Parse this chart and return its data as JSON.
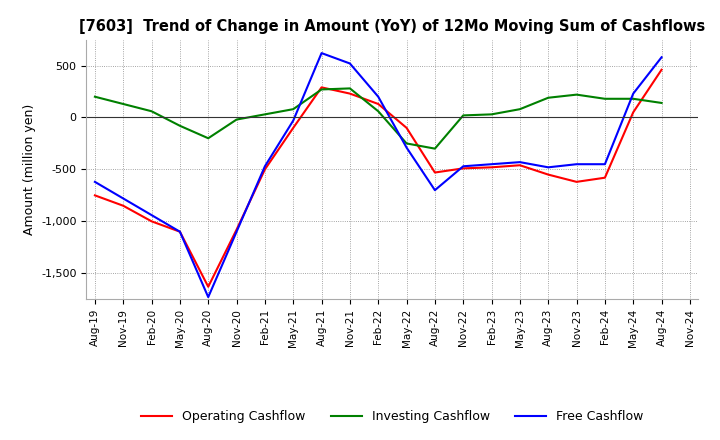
{
  "title": "[7603]  Trend of Change in Amount (YoY) of 12Mo Moving Sum of Cashflows",
  "ylabel": "Amount (million yen)",
  "ylim": [
    -1750,
    750
  ],
  "yticks": [
    -1500,
    -1000,
    -500,
    0,
    500
  ],
  "x_labels": [
    "Aug-19",
    "Nov-19",
    "Feb-20",
    "May-20",
    "Aug-20",
    "Nov-20",
    "Feb-21",
    "May-21",
    "Aug-21",
    "Nov-21",
    "Feb-22",
    "May-22",
    "Aug-22",
    "Nov-22",
    "Feb-23",
    "May-23",
    "Aug-23",
    "Nov-23",
    "Feb-24",
    "May-24",
    "Aug-24",
    "Nov-24"
  ],
  "operating": [
    -750,
    -850,
    -1000,
    -1100,
    -1630,
    -1080,
    -500,
    -100,
    290,
    230,
    130,
    -100,
    -530,
    -490,
    -480,
    -460,
    -550,
    -620,
    -580,
    50,
    460,
    null
  ],
  "investing": [
    200,
    130,
    60,
    -80,
    -200,
    -20,
    30,
    80,
    270,
    280,
    60,
    -250,
    -300,
    20,
    30,
    80,
    190,
    220,
    180,
    180,
    140,
    null
  ],
  "free": [
    -620,
    -780,
    -940,
    -1100,
    -1730,
    -1100,
    -470,
    -30,
    620,
    520,
    200,
    -290,
    -700,
    -470,
    -450,
    -430,
    -480,
    -450,
    -450,
    230,
    580,
    null
  ],
  "operating_color": "#ff0000",
  "investing_color": "#008000",
  "free_color": "#0000ff",
  "background_color": "#ffffff",
  "legend_labels": [
    "Operating Cashflow",
    "Investing Cashflow",
    "Free Cashflow"
  ]
}
